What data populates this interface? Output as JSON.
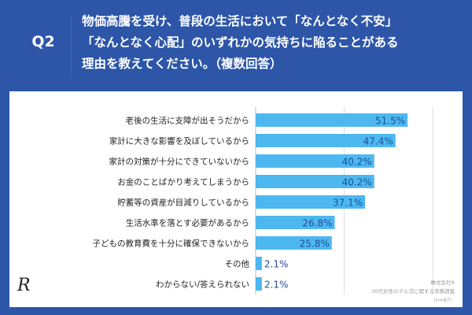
{
  "header": {
    "question_no": "Q2",
    "question_lines": [
      "物価高騰を受け、普段の生活において「なんとなく不安」",
      "「なんとなく心配」のいずれかの気持ちに陥ることがある",
      "理由を教えてください。（複数回答）"
    ]
  },
  "footer": {
    "company": "株式会社R",
    "survey": "30代女性のデル活に関する実態調査",
    "n": "（n=97）",
    "logo": "R"
  },
  "colors": {
    "background": "#2d56a9",
    "bar": "#4db8f0",
    "label": "#1f4e99"
  },
  "chart_data": {
    "type": "bar",
    "orientation": "horizontal",
    "categories": [
      "老後の生活に支障が出そうだから",
      "家計に大きな影響を及ぼしているから",
      "家計の対策が十分にできていないから",
      "お金のことばかり考えてしまうから",
      "貯蓄等の資産が目減りしているから",
      "生活水準を落とす必要があるから",
      "子どもの教育費を十分に確保できないから",
      "その他",
      "わからない/答えられない"
    ],
    "values": [
      51.5,
      47.4,
      40.2,
      40.2,
      37.1,
      26.8,
      25.8,
      2.1,
      2.1
    ],
    "value_labels": [
      "51.5%",
      "47.4%",
      "40.2%",
      "40.2%",
      "37.1%",
      "26.8%",
      "25.8%",
      "2.1%",
      "2.1%"
    ],
    "xlim": [
      0,
      60
    ],
    "grid": true,
    "gridlines": [
      0,
      30,
      60
    ]
  }
}
